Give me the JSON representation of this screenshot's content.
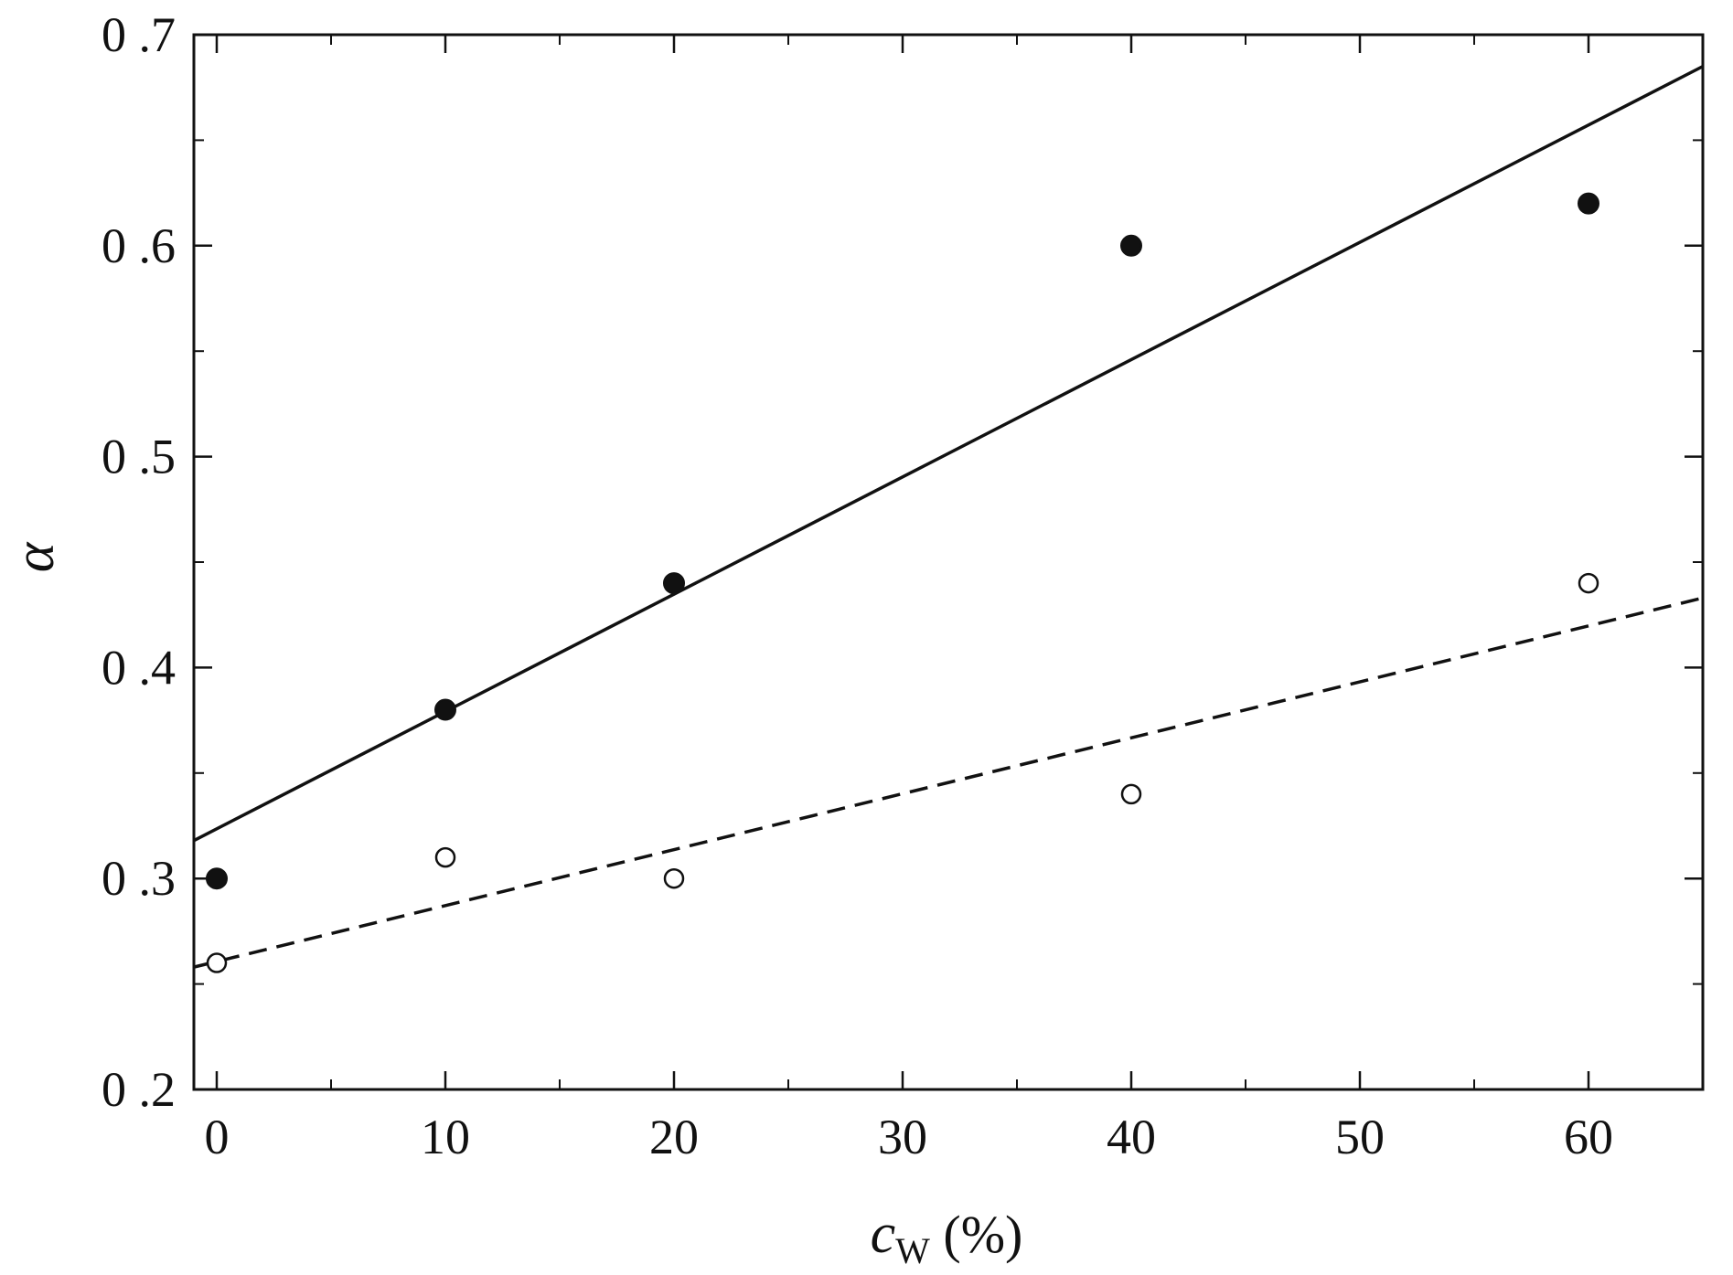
{
  "chart_data": {
    "type": "scatter",
    "title": "",
    "ylabel": "α",
    "xlabel": {
      "symbol": "c",
      "subscript": "W",
      "unit": "(%)"
    },
    "xlim": [
      -1,
      65
    ],
    "ylim": [
      0.2,
      0.7
    ],
    "x_ticks": [
      0,
      10,
      20,
      30,
      40,
      50,
      60
    ],
    "x_tick_labels": [
      "0",
      "10",
      "20",
      "30",
      "40",
      "50",
      "60"
    ],
    "y_ticks": [
      0.2,
      0.3,
      0.4,
      0.5,
      0.6,
      0.7
    ],
    "y_tick_labels": [
      "0 .2",
      "0 .3",
      "0 .4",
      "0 .5",
      "0 .6",
      "0 .7"
    ],
    "grid": false,
    "series": [
      {
        "marker": "filled-circle",
        "x": [
          0,
          10,
          20,
          40,
          60
        ],
        "y": [
          0.3,
          0.38,
          0.44,
          0.6,
          0.62
        ]
      },
      {
        "marker": "open-circle",
        "x": [
          0,
          10,
          20,
          40,
          60
        ],
        "y": [
          0.26,
          0.31,
          0.3,
          0.34,
          0.44
        ]
      }
    ],
    "fit_lines": [
      {
        "style": "solid",
        "x": [
          -1,
          65
        ],
        "y": [
          0.318,
          0.685
        ]
      },
      {
        "style": "dashed",
        "x": [
          -1,
          65
        ],
        "y": [
          0.258,
          0.433
        ]
      }
    ],
    "colors": {
      "ink": "#111111",
      "background": "#ffffff"
    }
  }
}
